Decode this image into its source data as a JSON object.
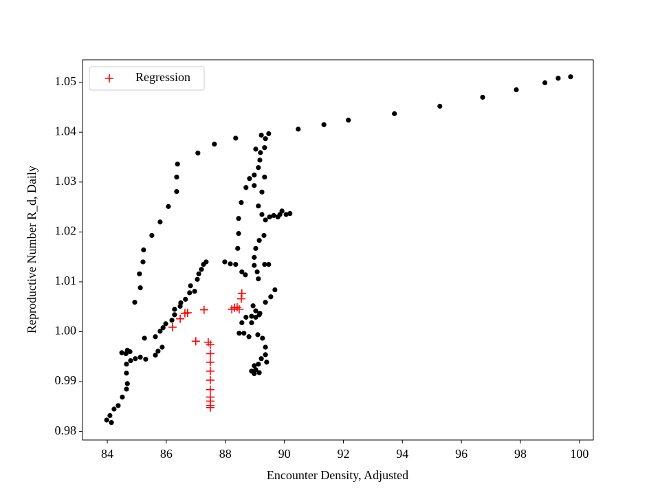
{
  "chart_data": {
    "type": "scatter",
    "xlabel": "Encounter Density, Adjusted",
    "ylabel": "Reproductive Number R_d, Daily",
    "xlim": [
      83.16,
      100.47
    ],
    "ylim": [
      0.9783,
      1.0545
    ],
    "xticks": [
      84,
      86,
      88,
      90,
      92,
      94,
      96,
      98,
      100
    ],
    "yticks": [
      0.98,
      0.99,
      {
        "value": 1,
        "label": "1.00"
      },
      1.01,
      1.02,
      1.03,
      1.04,
      1.05
    ],
    "legend": "upper left",
    "series": [
      {
        "color": "#000000",
        "marker": "o",
        "x": [
          83.98,
          84.09,
          84.14,
          84.23,
          84.37,
          84.51,
          84.65,
          84.68,
          84.65,
          84.65,
          84.63,
          84.49,
          84.68,
          84.77,
          84.79,
          84.95,
          85.12,
          85.3,
          85.63,
          85.79,
          85.89,
          85.63,
          85.72,
          85.86,
          85.98,
          86.19,
          86.28,
          86.28,
          86.47,
          86.49,
          86.65,
          86.79,
          86.82,
          86.96,
          87.05,
          87.1,
          87.19,
          87.26,
          87.35,
          84.93,
          85.09,
          85.12,
          85.21,
          85.23,
          85.26,
          85.51,
          85.79,
          86.07,
          86.35,
          86.35,
          86.38,
          87.07,
          87.63,
          88.35,
          90.47,
          91.34,
          92.17,
          93.73,
          95.27,
          96.72,
          97.86,
          98.83,
          99.28,
          99.7,
          87.98,
          88.17,
          88.35,
          88.56,
          88.68,
          88.42,
          88.45,
          88.45,
          88.54,
          88.7,
          88.98,
          88.82,
          88.98,
          89.12,
          89.17,
          89.19,
          89.03,
          89.33,
          89.36,
          89.22,
          89.47,
          89.33,
          89.24,
          89.12,
          89.24,
          89.36,
          89.5,
          89.64,
          89.78,
          89.92,
          90.06,
          90.19,
          89.85,
          89.31,
          89.15,
          89.03,
          88.98,
          88.98,
          89.08,
          89.12,
          89.33,
          89.47,
          88.94,
          89.68,
          89.54,
          89.36,
          89.17,
          89.03,
          88.89,
          88.7,
          88.56,
          88.63,
          88.47,
          88.8,
          89.1,
          89.26,
          89.36,
          89.36,
          89.4,
          89.22,
          89.12,
          89.03,
          88.98,
          88.98,
          89.15,
          88.89,
          89.15,
          89.03,
          88.89
        ],
        "values": [
          0.9823,
          0.9832,
          0.9818,
          0.9845,
          0.9852,
          0.9869,
          0.9885,
          0.9896,
          0.9917,
          0.9935,
          0.9956,
          0.9958,
          0.9963,
          0.996,
          0.9942,
          0.9946,
          0.9949,
          0.9945,
          0.999,
          1.0001,
          1.0008,
          0.9953,
          0.9961,
          0.9969,
          1.0016,
          1.0023,
          1.0034,
          1.0045,
          1.0051,
          1.0058,
          1.0065,
          1.0078,
          1.0092,
          1.0081,
          1.0105,
          1.0116,
          1.0125,
          1.0135,
          1.014,
          1.0059,
          1.0116,
          1.0088,
          1.014,
          1.0164,
          0.9987,
          1.0193,
          1.022,
          1.0251,
          1.0281,
          1.031,
          1.0336,
          1.0358,
          1.0376,
          1.0388,
          1.0406,
          1.0415,
          1.0424,
          1.0437,
          1.0452,
          1.047,
          1.0485,
          1.0499,
          1.0508,
          1.0511,
          1.014,
          1.0136,
          1.0135,
          1.012,
          1.0114,
          1.0167,
          1.0197,
          1.0227,
          1.0259,
          1.0289,
          1.0293,
          1.0307,
          1.0314,
          1.0329,
          1.0344,
          1.0359,
          1.0366,
          1.0369,
          1.0387,
          1.0394,
          1.0397,
          1.031,
          1.028,
          1.0252,
          1.0235,
          1.0224,
          1.023,
          1.0233,
          1.023,
          1.0242,
          1.0235,
          1.0237,
          1.0235,
          1.0193,
          1.0183,
          1.0167,
          1.0149,
          1.0133,
          1.012,
          1.0106,
          1.0135,
          1.0135,
          1.0052,
          1.0084,
          1.007,
          1.0059,
          1.0037,
          1.0029,
          1.0031,
          1.0029,
          1.0018,
          0.9997,
          0.9997,
          0.999,
          0.9994,
          0.9987,
          0.9969,
          0.9954,
          0.9939,
          0.9946,
          0.9935,
          0.9924,
          0.9916,
          0.9932,
          0.9918,
          0.9921,
          1.0034,
          1.0042,
          1.0018
        ]
      },
      {
        "name": "Regression",
        "color": "#ff0000",
        "marker": "+",
        "x": [
          86.21,
          86.47,
          86.63,
          86.72,
          87.28,
          87.0,
          87.42,
          87.49,
          87.49,
          87.49,
          87.49,
          87.49,
          87.49,
          87.49,
          87.49,
          87.49,
          87.49,
          88.22,
          88.31,
          88.4,
          88.47,
          88.54,
          88.56
        ],
        "values": [
          1.0009,
          1.0026,
          1.0037,
          1.0038,
          1.0044,
          0.9981,
          0.9979,
          0.9974,
          0.9956,
          0.9939,
          0.9921,
          0.9903,
          0.9884,
          0.9869,
          0.9861,
          0.9852,
          0.9848,
          1.0045,
          1.0048,
          1.0049,
          1.0045,
          1.0066,
          1.0077
        ]
      }
    ]
  }
}
